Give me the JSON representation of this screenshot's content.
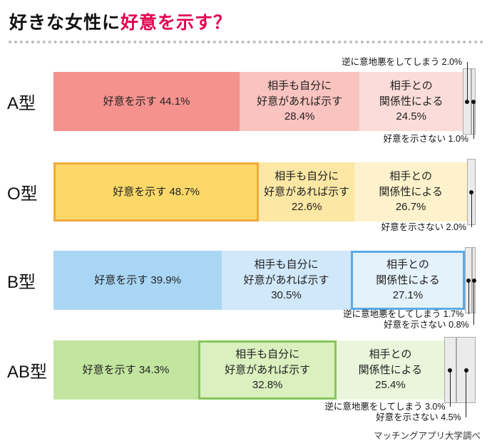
{
  "title": {
    "prefix": "好きな女性に",
    "highlight": "好意を示す？"
  },
  "source": "マッチングアプリ大学調べ",
  "chart_data": {
    "type": "bar",
    "subtype": "horizontal-stacked-percentage",
    "title": "好きな女性に好意を示す？",
    "unit": "%",
    "xlim": [
      0,
      100
    ],
    "grid": false,
    "legend": "none",
    "categories": [
      "A型",
      "O型",
      "B型",
      "AB型"
    ],
    "segment_names": [
      "好意を示す",
      "相手も自分に好意があれば示す",
      "相手との関係性による",
      "逆に意地悪をしてしまう",
      "好意を示さない"
    ],
    "series": [
      {
        "name": "好意を示す",
        "values": [
          44.1,
          48.7,
          39.9,
          34.3
        ]
      },
      {
        "name": "相手も自分に好意があれば示す",
        "values": [
          28.4,
          22.6,
          30.5,
          32.8
        ]
      },
      {
        "name": "相手との関係性による",
        "values": [
          24.5,
          26.7,
          27.1,
          25.4
        ]
      },
      {
        "name": "逆に意地悪をしてしまう",
        "values": [
          2.0,
          null,
          1.7,
          3.0
        ]
      },
      {
        "name": "好意を示さない",
        "values": [
          1.0,
          2.0,
          0.8,
          4.5
        ]
      }
    ],
    "rows": [
      {
        "category": "A型",
        "segments": [
          {
            "name": "好意を示す",
            "value": 44.1,
            "label": "好意を示す 44.1%",
            "color": "#F5928D"
          },
          {
            "name": "相手も自分に好意があれば示す",
            "value": 28.4,
            "label": "相手も自分に\n好意があれば示す\n28.4%",
            "color": "#F9C3BF"
          },
          {
            "name": "相手との関係性による",
            "value": 24.5,
            "label": "相手との\n関係性による\n24.5%",
            "color": "#FBDCD8"
          }
        ],
        "tiny_segments": [
          {
            "name": "逆に意地悪をしてしまう",
            "value": 2.0,
            "label": "逆に意地悪をしてしまう 2.0%",
            "callout": "above"
          },
          {
            "name": "好意を示さない",
            "value": 1.0,
            "label": "好意を示さない 1.0%",
            "callout": "below"
          }
        ]
      },
      {
        "category": "O型",
        "segments": [
          {
            "name": "好意を示す",
            "value": 48.7,
            "label": "好意を示す 48.7%",
            "color": "#FBD868",
            "highlight_border": "#F2A93B"
          },
          {
            "name": "相手も自分に好意があれば示す",
            "value": 22.6,
            "label": "相手も自分に\n好意があれば示す\n22.6%",
            "color": "#FCE8A4"
          },
          {
            "name": "相手との関係性による",
            "value": 26.7,
            "label": "相手との\n関係性による\n26.7%",
            "color": "#FDF2CB"
          }
        ],
        "tiny_segments": [
          {
            "name": "好意を示さない",
            "value": 2.0,
            "label": "好意を示さない 2.0%",
            "callout": "below"
          }
        ]
      },
      {
        "category": "B型",
        "segments": [
          {
            "name": "好意を示す",
            "value": 39.9,
            "label": "好意を示す 39.9%",
            "color": "#A9D6F5"
          },
          {
            "name": "相手も自分に好意があれば示す",
            "value": 30.5,
            "label": "相手も自分に\n好意があれば示す\n30.5%",
            "color": "#D1E8FA"
          },
          {
            "name": "相手との関係性による",
            "value": 27.1,
            "label": "相手との\n関係性による\n27.1%",
            "color": "#E4F2FC",
            "highlight_border": "#5AAAE8"
          }
        ],
        "tiny_segments": [
          {
            "name": "逆に意地悪をしてしまう",
            "value": 1.7,
            "label": "逆に意地悪をしてしまう 1.7%",
            "callout": "below"
          },
          {
            "name": "好意を示さない",
            "value": 0.8,
            "label": "好意を示さない 0.8%",
            "callout": "below"
          }
        ]
      },
      {
        "category": "AB型",
        "segments": [
          {
            "name": "好意を示す",
            "value": 34.3,
            "label": "好意を示す 34.3%",
            "color": "#C2E5A0"
          },
          {
            "name": "相手も自分に好意があれば示す",
            "value": 32.8,
            "label": "相手も自分に\n好意があれば示す\n32.8%",
            "color": "#DAF0BF",
            "highlight_border": "#86C65A"
          },
          {
            "name": "相手との関係性による",
            "value": 25.4,
            "label": "相手との\n関係性による\n25.4%",
            "color": "#EAF6DC"
          }
        ],
        "tiny_segments": [
          {
            "name": "逆に意地悪をしてしまう",
            "value": 3.0,
            "label": "逆に意地悪をしてしまう 3.0%",
            "callout": "below"
          },
          {
            "name": "好意を示さない",
            "value": 4.5,
            "label": "好意を示さない 4.5%",
            "callout": "below"
          }
        ]
      }
    ]
  }
}
